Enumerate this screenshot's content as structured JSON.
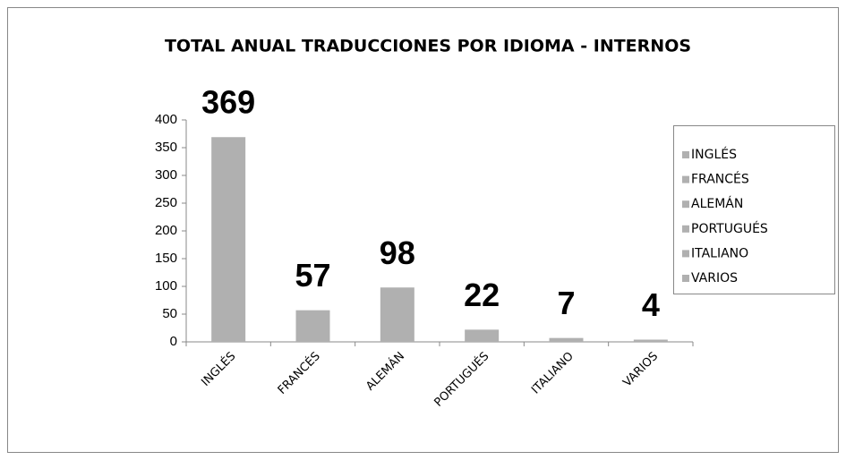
{
  "chart_data": {
    "type": "bar",
    "title": "TOTAL ANUAL TRADUCCIONES POR IDIOMA - INTERNOS",
    "categories": [
      "INGLÉS",
      "FRANCÉS",
      "ALEMÁN",
      "PORTUGUÉS",
      "ITALIANO",
      "VARIOS"
    ],
    "values": [
      369,
      57,
      98,
      22,
      7,
      4
    ],
    "color": "#b0b0b0",
    "ylim": [
      0,
      400
    ],
    "yticks": [
      0,
      50,
      100,
      150,
      200,
      250,
      300,
      350,
      400
    ],
    "grid": false,
    "legend": "right"
  }
}
